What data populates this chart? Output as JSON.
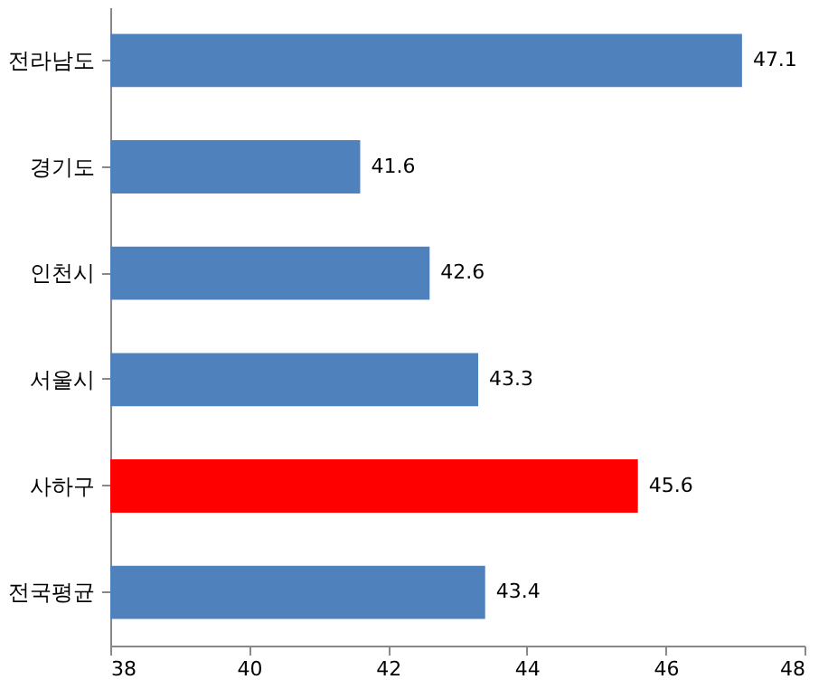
{
  "chart_data": {
    "type": "bar",
    "orientation": "horizontal",
    "categories": [
      "전라남도",
      "경기도",
      "인천시",
      "서울시",
      "사하구",
      "전국평균"
    ],
    "values": [
      47.1,
      41.6,
      42.6,
      43.3,
      45.6,
      43.4
    ],
    "colors": [
      "#4f81bd",
      "#4f81bd",
      "#4f81bd",
      "#4f81bd",
      "#ff0000",
      "#4f81bd"
    ],
    "xlim": [
      38,
      48
    ],
    "xticks": [
      38,
      40,
      42,
      44,
      46,
      48
    ],
    "data_labels": true
  }
}
